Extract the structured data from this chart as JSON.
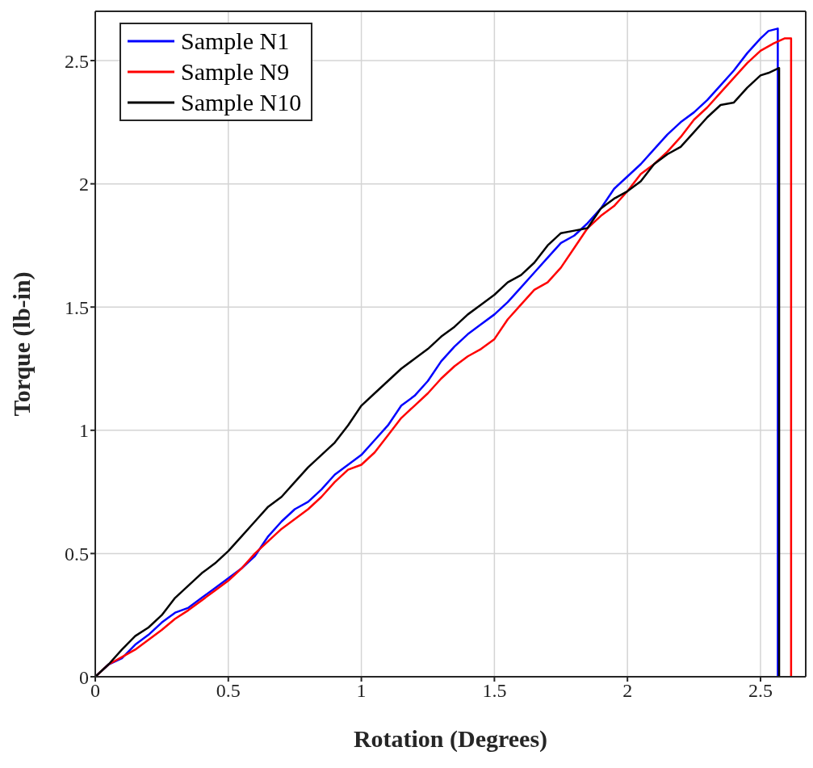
{
  "chart_data": {
    "type": "line",
    "xlabel": "Rotation (Degrees)",
    "ylabel": "Torque (lb-in)",
    "xlim": [
      0,
      2.67
    ],
    "ylim": [
      0,
      2.7
    ],
    "xticks": [
      0,
      0.5,
      1,
      1.5,
      2,
      2.5
    ],
    "yticks": [
      0,
      0.5,
      1,
      1.5,
      2,
      2.5
    ],
    "grid": true,
    "legend": "top left",
    "series": [
      {
        "name": "Sample N1",
        "color": "#0000ff",
        "x": [
          0,
          0.05,
          0.1,
          0.15,
          0.2,
          0.25,
          0.3,
          0.35,
          0.4,
          0.45,
          0.5,
          0.55,
          0.6,
          0.65,
          0.7,
          0.75,
          0.8,
          0.85,
          0.9,
          0.95,
          1.0,
          1.05,
          1.1,
          1.15,
          1.2,
          1.25,
          1.3,
          1.35,
          1.4,
          1.45,
          1.5,
          1.55,
          1.6,
          1.65,
          1.7,
          1.75,
          1.8,
          1.85,
          1.9,
          1.95,
          2.0,
          2.05,
          2.1,
          2.15,
          2.2,
          2.25,
          2.3,
          2.35,
          2.4,
          2.45,
          2.5,
          2.53,
          2.565,
          2.565
        ],
        "values": [
          0,
          0.05,
          0.075,
          0.13,
          0.17,
          0.22,
          0.26,
          0.28,
          0.32,
          0.36,
          0.4,
          0.44,
          0.49,
          0.57,
          0.63,
          0.68,
          0.71,
          0.76,
          0.82,
          0.86,
          0.9,
          0.96,
          1.02,
          1.1,
          1.14,
          1.2,
          1.28,
          1.34,
          1.39,
          1.43,
          1.47,
          1.52,
          1.58,
          1.64,
          1.7,
          1.76,
          1.79,
          1.84,
          1.9,
          1.98,
          2.03,
          2.08,
          2.14,
          2.2,
          2.25,
          2.29,
          2.34,
          2.4,
          2.46,
          2.53,
          2.59,
          2.62,
          2.63,
          0
        ]
      },
      {
        "name": "Sample N9",
        "color": "#ff0000",
        "x": [
          0,
          0.05,
          0.1,
          0.15,
          0.2,
          0.25,
          0.3,
          0.35,
          0.4,
          0.45,
          0.5,
          0.55,
          0.6,
          0.65,
          0.7,
          0.75,
          0.8,
          0.85,
          0.9,
          0.95,
          1.0,
          1.05,
          1.1,
          1.15,
          1.2,
          1.25,
          1.3,
          1.35,
          1.4,
          1.45,
          1.5,
          1.55,
          1.6,
          1.65,
          1.7,
          1.75,
          1.8,
          1.85,
          1.9,
          1.95,
          2.0,
          2.05,
          2.1,
          2.15,
          2.2,
          2.25,
          2.3,
          2.35,
          2.4,
          2.45,
          2.5,
          2.55,
          2.59,
          2.615,
          2.615
        ],
        "values": [
          0,
          0.05,
          0.08,
          0.11,
          0.15,
          0.19,
          0.235,
          0.27,
          0.31,
          0.35,
          0.39,
          0.44,
          0.5,
          0.55,
          0.6,
          0.64,
          0.68,
          0.73,
          0.79,
          0.84,
          0.86,
          0.91,
          0.98,
          1.05,
          1.1,
          1.15,
          1.21,
          1.26,
          1.3,
          1.33,
          1.37,
          1.45,
          1.51,
          1.57,
          1.6,
          1.66,
          1.74,
          1.82,
          1.87,
          1.91,
          1.97,
          2.04,
          2.08,
          2.13,
          2.19,
          2.26,
          2.31,
          2.37,
          2.43,
          2.49,
          2.54,
          2.57,
          2.59,
          2.59,
          0
        ]
      },
      {
        "name": "Sample N10",
        "color": "#000000",
        "x": [
          0,
          0.05,
          0.1,
          0.15,
          0.2,
          0.25,
          0.3,
          0.35,
          0.4,
          0.45,
          0.5,
          0.55,
          0.6,
          0.65,
          0.7,
          0.75,
          0.8,
          0.85,
          0.9,
          0.95,
          1.0,
          1.05,
          1.1,
          1.15,
          1.2,
          1.25,
          1.3,
          1.35,
          1.4,
          1.45,
          1.5,
          1.55,
          1.6,
          1.65,
          1.7,
          1.75,
          1.8,
          1.85,
          1.9,
          1.95,
          2.0,
          2.05,
          2.1,
          2.15,
          2.2,
          2.25,
          2.3,
          2.35,
          2.4,
          2.45,
          2.5,
          2.53,
          2.57,
          2.57
        ],
        "values": [
          0,
          0.05,
          0.11,
          0.165,
          0.2,
          0.25,
          0.32,
          0.37,
          0.42,
          0.46,
          0.51,
          0.57,
          0.63,
          0.69,
          0.73,
          0.79,
          0.85,
          0.9,
          0.95,
          1.02,
          1.1,
          1.15,
          1.2,
          1.25,
          1.29,
          1.33,
          1.38,
          1.42,
          1.47,
          1.51,
          1.55,
          1.6,
          1.63,
          1.68,
          1.75,
          1.8,
          1.81,
          1.82,
          1.9,
          1.94,
          1.97,
          2.01,
          2.08,
          2.12,
          2.15,
          2.21,
          2.27,
          2.32,
          2.33,
          2.39,
          2.44,
          2.45,
          2.47,
          0
        ]
      }
    ]
  }
}
